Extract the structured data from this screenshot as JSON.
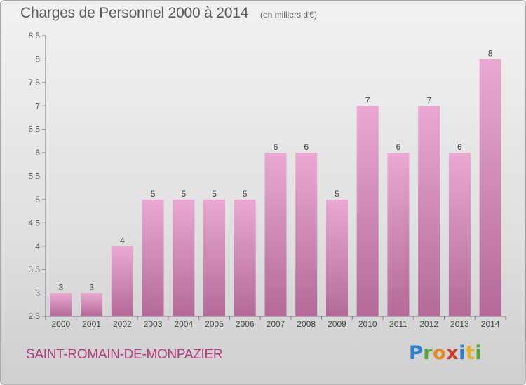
{
  "header": {
    "title": "Charges de Personnel 2000 à 2014",
    "subtitle": "(en milliers d'€)"
  },
  "footer": {
    "commune": "SAINT-ROMAIN-DE-MONPAZIER",
    "logo_text": "Proxiti"
  },
  "colors": {
    "bar_top": "#e9a9d2",
    "bar_bottom": "#b46a98",
    "commune_text": "#b03a7a",
    "axis": "#7a7a7a"
  },
  "chart_data": {
    "type": "bar",
    "title": "Charges de Personnel 2000 à 2014",
    "subtitle": "(en milliers d'€)",
    "categories": [
      "2000",
      "2001",
      "2002",
      "2003",
      "2004",
      "2005",
      "2006",
      "2007",
      "2008",
      "2009",
      "2010",
      "2011",
      "2012",
      "2013",
      "2014"
    ],
    "values": [
      3,
      3,
      4,
      5,
      5,
      5,
      5,
      6,
      6,
      5,
      7,
      6,
      7,
      6,
      8
    ],
    "data_labels": [
      "3",
      "3",
      "4",
      "5",
      "5",
      "5",
      "5",
      "6",
      "6",
      "5",
      "7",
      "6",
      "7",
      "6",
      "8"
    ],
    "ylim": [
      2.5,
      8.5
    ],
    "yticks": [
      "2.5",
      "3",
      "3.5",
      "4",
      "4.5",
      "5",
      "5.5",
      "6",
      "6.5",
      "7",
      "7.5",
      "8",
      "8.5"
    ],
    "xlabel": "",
    "ylabel": "",
    "grid": false,
    "legend": "none"
  }
}
